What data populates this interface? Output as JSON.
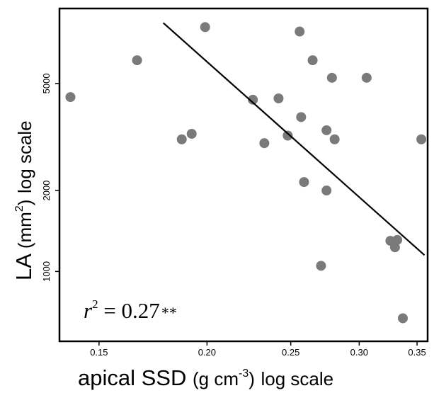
{
  "chart_data": {
    "type": "scatter",
    "x_scale": "log",
    "y_scale": "log",
    "xlim": [
      0.135,
      0.36
    ],
    "ylim": [
      550,
      9500
    ],
    "xlabel": {
      "main": "apical SSD",
      "units_open": "(g cm",
      "units_exp": "-3",
      "units_close": ")",
      "scale": "log scale"
    },
    "ylabel": {
      "main": "LA",
      "units_open": "(mm",
      "units_exp": "2",
      "units_close": ")",
      "scale": "log scale"
    },
    "x_ticks": [
      {
        "value": 0.15,
        "label": "0.15"
      },
      {
        "value": 0.2,
        "label": "0.20"
      },
      {
        "value": 0.25,
        "label": "0.25"
      },
      {
        "value": 0.3,
        "label": "0.30"
      },
      {
        "value": 0.35,
        "label": "0.35"
      }
    ],
    "y_ticks": [
      {
        "value": 1000,
        "label": "1000"
      },
      {
        "value": 2000,
        "label": "2000"
      },
      {
        "value": 5000,
        "label": "5000"
      }
    ],
    "annotation": {
      "var": "r",
      "exp": "2",
      "text": " = 0.27",
      "sig": "**"
    },
    "point_color": "#7a7a7a",
    "points": [
      {
        "x": 0.139,
        "y": 4450
      },
      {
        "x": 0.166,
        "y": 6100
      },
      {
        "x": 0.199,
        "y": 8100
      },
      {
        "x": 0.187,
        "y": 3100
      },
      {
        "x": 0.192,
        "y": 3250
      },
      {
        "x": 0.226,
        "y": 4350
      },
      {
        "x": 0.233,
        "y": 3000
      },
      {
        "x": 0.242,
        "y": 4400
      },
      {
        "x": 0.248,
        "y": 3200
      },
      {
        "x": 0.256,
        "y": 7800
      },
      {
        "x": 0.257,
        "y": 3750
      },
      {
        "x": 0.259,
        "y": 2150
      },
      {
        "x": 0.265,
        "y": 6100
      },
      {
        "x": 0.271,
        "y": 1050
      },
      {
        "x": 0.275,
        "y": 3350
      },
      {
        "x": 0.275,
        "y": 2000
      },
      {
        "x": 0.279,
        "y": 5250
      },
      {
        "x": 0.281,
        "y": 3100
      },
      {
        "x": 0.306,
        "y": 5250
      },
      {
        "x": 0.326,
        "y": 1300
      },
      {
        "x": 0.33,
        "y": 1230
      },
      {
        "x": 0.332,
        "y": 1310
      },
      {
        "x": 0.337,
        "y": 670
      },
      {
        "x": 0.354,
        "y": 3100
      }
    ],
    "fit_line": {
      "x": [
        0.178,
        0.357
      ],
      "y": [
        8400,
        1150
      ]
    }
  }
}
